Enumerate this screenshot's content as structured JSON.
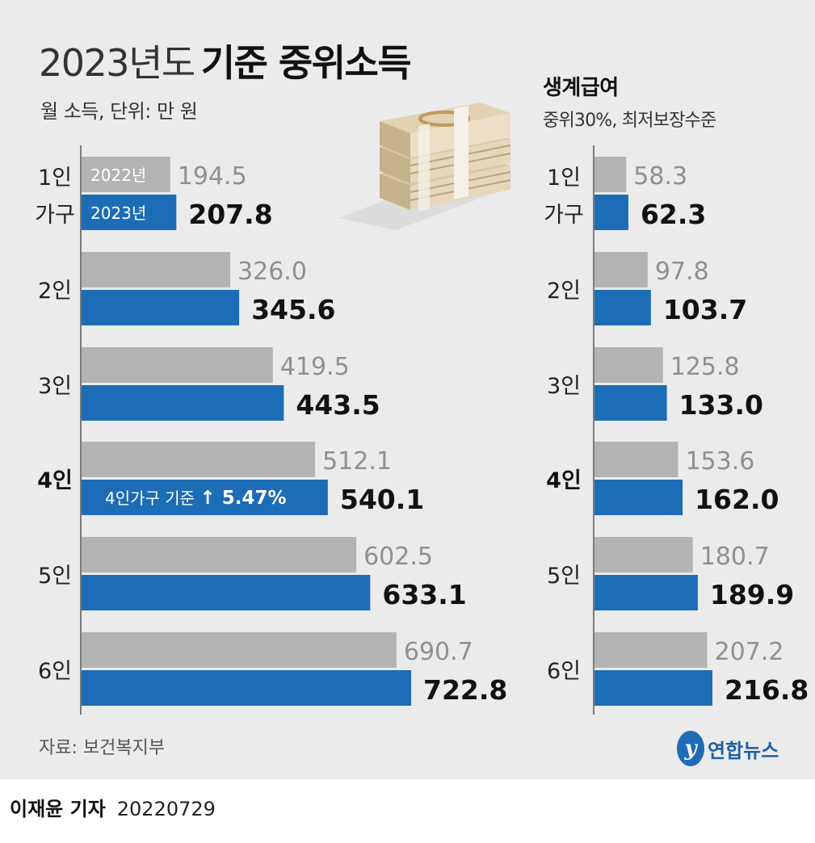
{
  "title": {
    "light": "2023년도",
    "bold": "기준 중위소득"
  },
  "subtitle": "월 소득, 단위: 만 원",
  "right_title": "생계급여",
  "right_subtitle": "중위30%, 최저보장수준",
  "source": "자료: 보건복지부",
  "reporter": {
    "name": "이재윤 기자",
    "date": "20220729"
  },
  "logo": {
    "mark": "y",
    "text": "연합뉴스"
  },
  "colors": {
    "prev": "#b4b3b3",
    "curr": "#1c6cb6",
    "axis": "#555555",
    "background": "#ebebeb"
  },
  "chart_data": [
    {
      "type": "bar",
      "orientation": "horizontal",
      "title": "2023년도 기준 중위소득",
      "unit": "월 소득, 단위: 만 원",
      "categories": [
        "1인 가구",
        "2인",
        "3인",
        "4인",
        "5인",
        "6인"
      ],
      "category_lines": [
        [
          "1인",
          "가구"
        ],
        [
          "2인"
        ],
        [
          "3인"
        ],
        [
          "4인"
        ],
        [
          "5인"
        ],
        [
          "6인"
        ]
      ],
      "highlight_category": "4인",
      "series": [
        {
          "name": "2022년",
          "values": [
            194.5,
            326.0,
            419.5,
            512.1,
            602.5,
            690.7
          ]
        },
        {
          "name": "2023년",
          "values": [
            207.8,
            345.6,
            443.5,
            540.1,
            633.1,
            722.8
          ]
        }
      ],
      "value_labels": [
        [
          "194.5",
          "326.0",
          "419.5",
          "512.1",
          "602.5",
          "690.7"
        ],
        [
          "207.8",
          "345.6",
          "443.5",
          "540.1",
          "633.1",
          "722.8"
        ]
      ],
      "legend": [
        "2022년",
        "2023년"
      ],
      "annotation": {
        "category": "4인",
        "text": "4인가구 기준",
        "change": "↑ 5.47%"
      },
      "xlim": [
        0,
        722.8
      ]
    },
    {
      "type": "bar",
      "orientation": "horizontal",
      "title": "생계급여",
      "unit": "중위30%, 최저보장수준",
      "categories": [
        "1인 가구",
        "2인",
        "3인",
        "4인",
        "5인",
        "6인"
      ],
      "category_lines": [
        [
          "1인",
          "가구"
        ],
        [
          "2인"
        ],
        [
          "3인"
        ],
        [
          "4인"
        ],
        [
          "5인"
        ],
        [
          "6인"
        ]
      ],
      "highlight_category": "4인",
      "series": [
        {
          "name": "2022년",
          "values": [
            58.3,
            97.8,
            125.8,
            153.6,
            180.7,
            207.2
          ]
        },
        {
          "name": "2023년",
          "values": [
            62.3,
            103.7,
            133.0,
            162.0,
            189.9,
            216.8
          ]
        }
      ],
      "value_labels": [
        [
          "58.3",
          "97.8",
          "125.8",
          "153.6",
          "180.7",
          "207.2"
        ],
        [
          "62.3",
          "103.7",
          "133.0",
          "162.0",
          "189.9",
          "216.8"
        ]
      ],
      "xlim": [
        0,
        216.8
      ]
    }
  ]
}
